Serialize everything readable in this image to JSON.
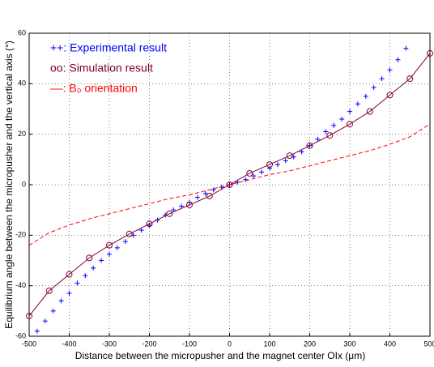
{
  "chart_data": {
    "type": "line",
    "xlabel": "Distance between the micropusher and the magnet center OIx (μm)",
    "ylabel": "Equilibrium angle between the micropusher and the vertical axis (°)",
    "xlim": [
      -500,
      500
    ],
    "xticks": [
      -500,
      -400,
      -300,
      -200,
      -100,
      0,
      100,
      200,
      300,
      400,
      500
    ],
    "ylim": [
      -60,
      60
    ],
    "yticks": [
      -60,
      -40,
      -20,
      0,
      20,
      40,
      60
    ],
    "grid": true,
    "legend": "upper left",
    "series": [
      {
        "name": "++: Experimental result",
        "color": "#0000ff",
        "marker": "+",
        "line": false,
        "x": [
          -480,
          -460,
          -440,
          -420,
          -400,
          -380,
          -360,
          -340,
          -320,
          -300,
          -280,
          -260,
          -240,
          -220,
          -200,
          -180,
          -160,
          -140,
          -120,
          -100,
          -80,
          -60,
          -40,
          -20,
          0,
          20,
          40,
          60,
          80,
          100,
          120,
          140,
          160,
          180,
          200,
          220,
          240,
          260,
          280,
          300,
          320,
          340,
          360,
          380,
          400,
          420,
          440
        ],
        "values": [
          -58,
          -54,
          -50,
          -46,
          -43,
          -39,
          -36,
          -33,
          -30,
          -27.5,
          -25,
          -22.5,
          -20,
          -18,
          -16,
          -14,
          -12,
          -10,
          -8.5,
          -7,
          -5,
          -3.5,
          -2,
          -1,
          0,
          1,
          2,
          3.5,
          5,
          6.5,
          8,
          9.5,
          11,
          13,
          15.5,
          18,
          21,
          23.5,
          26,
          29,
          32,
          35,
          38.5,
          42,
          45.5,
          49.5,
          54
        ]
      },
      {
        "name": "oo: Simulation result",
        "color": "#800033",
        "marker": "o",
        "line": "solid",
        "x": [
          -500,
          -450,
          -400,
          -350,
          -300,
          -250,
          -200,
          -150,
          -100,
          -50,
          0,
          50,
          100,
          150,
          200,
          250,
          300,
          350,
          400,
          450,
          500
        ],
        "values": [
          -52,
          -42,
          -35.5,
          -29,
          -24,
          -19.5,
          -15.5,
          -11.5,
          -8,
          -4.5,
          0,
          4.5,
          8,
          11.5,
          15.5,
          19.5,
          24,
          29,
          35.5,
          42,
          52
        ]
      },
      {
        "name": "––: B₀ orientation",
        "color": "#ff0000",
        "marker": null,
        "line": "dashed",
        "x": [
          -500,
          -450,
          -400,
          -350,
          -300,
          -250,
          -200,
          -150,
          -100,
          -50,
          0,
          50,
          100,
          150,
          200,
          250,
          300,
          350,
          400,
          450,
          500
        ],
        "values": [
          -24,
          -19,
          -16,
          -13.5,
          -11.5,
          -9.5,
          -7.5,
          -5.5,
          -4,
          -2,
          0,
          2,
          4,
          5.5,
          7.5,
          9.5,
          11.5,
          13.5,
          16,
          19,
          24
        ]
      }
    ]
  }
}
